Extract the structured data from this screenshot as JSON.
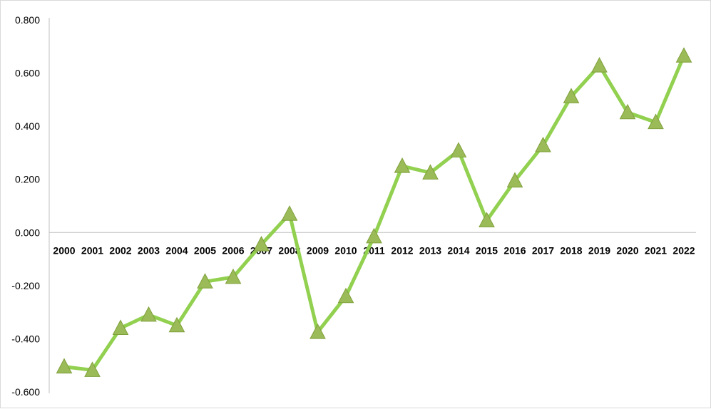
{
  "chart_data": {
    "type": "line",
    "title": "",
    "xlabel": "",
    "ylabel": "",
    "categories": [
      "2000",
      "2001",
      "2002",
      "2003",
      "2004",
      "2005",
      "2006",
      "2007",
      "2008",
      "2009",
      "2010",
      "2011",
      "2012",
      "2013",
      "2014",
      "2015",
      "2016",
      "2017",
      "2018",
      "2019",
      "2020",
      "2021",
      "2022"
    ],
    "series": [
      {
        "values": [
          -0.505,
          -0.518,
          -0.36,
          -0.31,
          -0.35,
          -0.185,
          -0.168,
          -0.045,
          0.07,
          -0.375,
          -0.24,
          -0.015,
          0.25,
          0.225,
          0.308,
          0.045,
          0.195,
          0.328,
          0.512,
          0.628,
          0.452,
          0.415,
          0.665
        ],
        "color": "#92D050",
        "marker": "triangle"
      }
    ],
    "ylim": [
      -0.6,
      0.8
    ],
    "yticks": [
      "-0.600",
      "-0.400",
      "-0.200",
      "0.000",
      "0.200",
      "0.400",
      "0.600",
      "0.800"
    ],
    "ytick_values": [
      -0.6,
      -0.4,
      -0.2,
      0.0,
      0.2,
      0.4,
      0.6,
      0.8
    ],
    "grid": false,
    "legend": "none"
  }
}
